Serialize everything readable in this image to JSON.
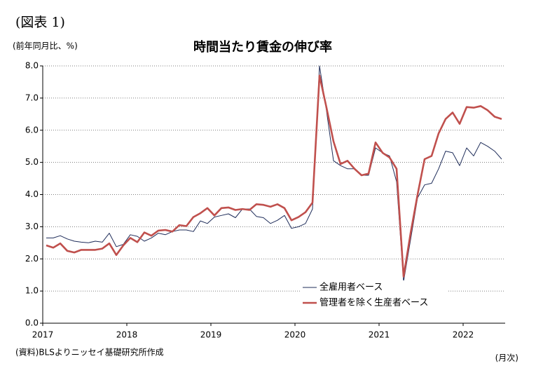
{
  "chart_data": {
    "type": "line",
    "figure_label": "(図表 1)",
    "title": "時間当たり賃金の伸び率",
    "y_axis_label": "(前年同月比、%)",
    "x_axis_label": "(月次)",
    "source": "(資料)BLSよりニッセイ基礎研究所作成",
    "categories": [
      "2017",
      null,
      null,
      null,
      null,
      null,
      null,
      null,
      null,
      null,
      null,
      null,
      "2018",
      null,
      null,
      null,
      null,
      null,
      null,
      null,
      null,
      null,
      null,
      null,
      "2019",
      null,
      null,
      null,
      null,
      null,
      null,
      null,
      null,
      null,
      null,
      null,
      "2020",
      null,
      null,
      null,
      null,
      null,
      null,
      null,
      null,
      null,
      null,
      null,
      "2021",
      null,
      null,
      null,
      null,
      null,
      null,
      null,
      null,
      null,
      null,
      null,
      "2022",
      null,
      null,
      null,
      null,
      null
    ],
    "series": [
      {
        "name": "全雇用者ベース",
        "color": "#1f2d5a",
        "width": 1,
        "values": [
          2.65,
          2.65,
          2.72,
          2.62,
          2.55,
          2.52,
          2.5,
          2.55,
          2.52,
          2.8,
          2.38,
          2.45,
          2.75,
          2.7,
          2.55,
          2.65,
          2.8,
          2.75,
          2.85,
          2.9,
          2.9,
          2.85,
          3.18,
          3.1,
          3.3,
          3.35,
          3.4,
          3.28,
          3.55,
          3.55,
          3.32,
          3.28,
          3.1,
          3.2,
          3.35,
          2.95,
          3.0,
          3.1,
          3.55,
          8.0,
          6.6,
          5.05,
          4.9,
          4.8,
          4.8,
          4.6,
          4.6,
          5.45,
          5.3,
          5.2,
          4.4,
          1.3,
          2.6,
          3.9,
          4.3,
          4.35,
          4.8,
          5.35,
          5.3,
          4.9,
          5.45,
          5.2,
          5.62,
          5.5,
          5.35,
          5.1
        ]
      },
      {
        "name": "管理者を除く生産者ベース",
        "color": "#c0504d",
        "width": 2.6,
        "values": [
          2.42,
          2.35,
          2.48,
          2.25,
          2.2,
          2.28,
          2.28,
          2.28,
          2.32,
          2.48,
          2.12,
          2.42,
          2.65,
          2.52,
          2.82,
          2.72,
          2.88,
          2.9,
          2.85,
          3.05,
          3.02,
          3.3,
          3.42,
          3.58,
          3.35,
          3.58,
          3.6,
          3.52,
          3.55,
          3.52,
          3.7,
          3.68,
          3.62,
          3.7,
          3.58,
          3.2,
          3.3,
          3.45,
          3.75,
          7.7,
          6.7,
          5.65,
          4.95,
          5.05,
          4.8,
          4.6,
          4.65,
          5.62,
          5.3,
          5.15,
          4.8,
          1.45,
          2.8,
          4.0,
          5.1,
          5.2,
          5.9,
          6.35,
          6.55,
          6.2,
          6.72,
          6.7,
          6.75,
          6.62,
          6.42,
          6.35
        ]
      }
    ],
    "ylim": [
      0,
      8
    ],
    "yticks": [
      {
        "value": 0,
        "label": "0.0"
      },
      {
        "value": 1,
        "label": "1.0"
      },
      {
        "value": 2,
        "label": "2.0"
      },
      {
        "value": 3,
        "label": "3.0"
      },
      {
        "value": 4,
        "label": "4.0"
      },
      {
        "value": 5,
        "label": "5.0"
      },
      {
        "value": 6,
        "label": "6.0"
      },
      {
        "value": 7,
        "label": "7.0"
      },
      {
        "value": 8,
        "label": "8.0"
      }
    ],
    "grid": true,
    "legend": "lower-right"
  }
}
